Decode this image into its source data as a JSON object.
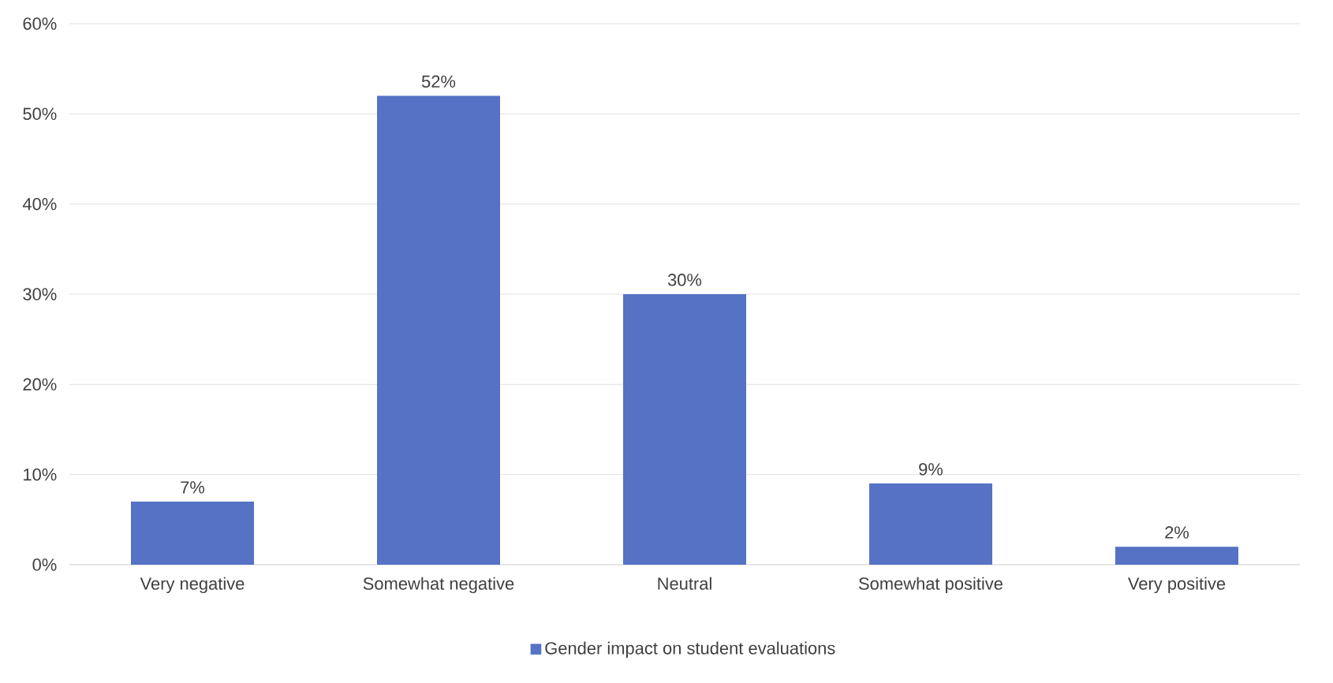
{
  "chart_data": {
    "type": "bar",
    "categories": [
      "Very negative",
      "Somewhat negative",
      "Neutral",
      "Somewhat positive",
      "Very positive"
    ],
    "series": [
      {
        "name": "Gender impact on student evaluations",
        "color": "#5572c4",
        "values": [
          7,
          52,
          30,
          9,
          2
        ],
        "value_labels": [
          "7%",
          "52%",
          "30%",
          "9%",
          "2%"
        ]
      }
    ],
    "ylim": [
      0,
      60
    ],
    "yticks": [
      {
        "value": 0,
        "label": "0%"
      },
      {
        "value": 10,
        "label": "10%"
      },
      {
        "value": 20,
        "label": "20%"
      },
      {
        "value": 30,
        "label": "30%"
      },
      {
        "value": 40,
        "label": "40%"
      },
      {
        "value": 50,
        "label": "50%"
      },
      {
        "value": 60,
        "label": "60%"
      }
    ],
    "grid": "y",
    "legend": "bottom"
  }
}
